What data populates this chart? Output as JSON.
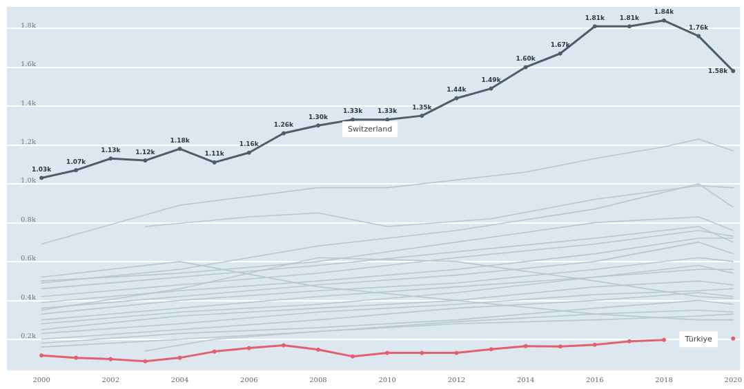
{
  "chart_data": {
    "type": "line",
    "x": [
      2000,
      2001,
      2002,
      2003,
      2004,
      2005,
      2006,
      2007,
      2008,
      2009,
      2010,
      2011,
      2012,
      2013,
      2014,
      2015,
      2016,
      2017,
      2018,
      2019,
      2020
    ],
    "xlim": [
      1999,
      2020.2
    ],
    "xticks": [
      2000,
      2002,
      2004,
      2006,
      2008,
      2010,
      2012,
      2014,
      2016,
      2018,
      2020
    ],
    "ylim": [
      40,
      1910
    ],
    "yticks": [
      {
        "value": 200,
        "label": "0.2k"
      },
      {
        "value": 400,
        "label": "0.4k"
      },
      {
        "value": 600,
        "label": "0.6k"
      },
      {
        "value": 800,
        "label": "0.8k"
      },
      {
        "value": 1000,
        "label": "1.0k"
      },
      {
        "value": 1200,
        "label": "1.2k"
      },
      {
        "value": 1400,
        "label": "1.4k"
      },
      {
        "value": 1600,
        "label": "1.6k"
      },
      {
        "value": 1800,
        "label": "1.8k"
      }
    ],
    "grid": "y",
    "legend": false,
    "marker": "circle",
    "line_style": "solid",
    "series": [
      {
        "marker": "none",
        "color": "#b9c7d1",
        "x": [
          2000,
          2004,
          2008,
          2010,
          2014,
          2016,
          2018,
          2019,
          2020
        ],
        "values": [
          690,
          890,
          980,
          980,
          1060,
          1130,
          1190,
          1230,
          1170
        ]
      },
      {
        "marker": "none",
        "color": "#b9c7d1",
        "x": [
          2003,
          2006,
          2008,
          2010,
          2013,
          2016,
          2019,
          2020
        ],
        "values": [
          780,
          830,
          850,
          780,
          820,
          920,
          990,
          980
        ]
      },
      {
        "marker": "none",
        "color": "#b9c7d1",
        "x": [
          2000,
          2004,
          2008,
          2012,
          2016,
          2019,
          2020
        ],
        "values": [
          490,
          560,
          680,
          760,
          870,
          1000,
          880
        ]
      },
      {
        "marker": "none",
        "color": "#b9c7d1",
        "x": [
          2000,
          2004,
          2008,
          2012,
          2016,
          2019,
          2020
        ],
        "values": [
          500,
          540,
          600,
          700,
          800,
          830,
          760
        ]
      },
      {
        "marker": "none",
        "color": "#b9c7d1",
        "x": [
          2000,
          2004,
          2008,
          2012,
          2016,
          2019,
          2020
        ],
        "values": [
          460,
          520,
          580,
          650,
          720,
          780,
          700
        ]
      },
      {
        "marker": "none",
        "color": "#b9c7d1",
        "x": [
          2000,
          2004,
          2008,
          2012,
          2016,
          2019,
          2020
        ],
        "values": [
          420,
          480,
          540,
          620,
          690,
          760,
          730
        ]
      },
      {
        "marker": "none",
        "color": "#b9c7d1",
        "x": [
          2000,
          2004,
          2008,
          2012,
          2016,
          2019,
          2020
        ],
        "values": [
          390,
          450,
          500,
          560,
          640,
          720,
          720
        ]
      },
      {
        "marker": "none",
        "color": "#b9c7d1",
        "x": [
          2000,
          2004,
          2008,
          2012,
          2016,
          2019,
          2020
        ],
        "values": [
          360,
          420,
          480,
          530,
          600,
          700,
          640
        ]
      },
      {
        "marker": "none",
        "color": "#b9c7d1",
        "x": [
          2000,
          2004,
          2008,
          2012,
          2016,
          2019,
          2020
        ],
        "values": [
          330,
          400,
          450,
          490,
          560,
          620,
          600
        ]
      },
      {
        "marker": "none",
        "color": "#b9c7d1",
        "x": [
          2000,
          2004,
          2008,
          2012,
          2016,
          2019,
          2020
        ],
        "values": [
          300,
          360,
          420,
          470,
          520,
          560,
          560
        ]
      },
      {
        "marker": "none",
        "color": "#b9c7d1",
        "x": [
          2000,
          2004,
          2008,
          2012,
          2016,
          2019,
          2020
        ],
        "values": [
          280,
          340,
          380,
          440,
          520,
          580,
          540
        ]
      },
      {
        "marker": "none",
        "color": "#b9c7d1",
        "x": [
          2000,
          2004,
          2008,
          2012,
          2016,
          2019,
          2020
        ],
        "values": [
          250,
          320,
          360,
          400,
          470,
          500,
          480
        ]
      },
      {
        "marker": "none",
        "color": "#b9c7d1",
        "x": [
          2000,
          2004,
          2008,
          2012,
          2016,
          2019,
          2020
        ],
        "values": [
          230,
          280,
          340,
          380,
          430,
          450,
          460
        ]
      },
      {
        "marker": "none",
        "color": "#b9c7d1",
        "x": [
          2000,
          2004,
          2008,
          2012,
          2016,
          2019,
          2020
        ],
        "values": [
          200,
          250,
          300,
          360,
          400,
          440,
          420
        ]
      },
      {
        "marker": "none",
        "color": "#b9c7d1",
        "x": [
          2000,
          2004,
          2008,
          2012,
          2016,
          2019,
          2020
        ],
        "values": [
          180,
          230,
          260,
          300,
          360,
          400,
          380
        ]
      },
      {
        "marker": "none",
        "color": "#b9c7d1",
        "x": [
          2000,
          2004,
          2008,
          2012,
          2016,
          2019,
          2020
        ],
        "values": [
          160,
          200,
          240,
          290,
          330,
          350,
          340
        ]
      },
      {
        "marker": "none",
        "color": "#b9c7d1",
        "x": [
          2003,
          2005,
          2008,
          2012,
          2016,
          2019,
          2020
        ],
        "values": [
          140,
          200,
          240,
          280,
          300,
          320,
          330
        ]
      },
      {
        "marker": "none",
        "color": "#b9c7d1",
        "x": [
          2000,
          2004,
          2008,
          2012,
          2016,
          2019,
          2020
        ],
        "values": [
          520,
          600,
          470,
          400,
          330,
          300,
          300
        ]
      },
      {
        "marker": "none",
        "color": "#b9c7d1",
        "x": [
          2000,
          2004,
          2008,
          2012,
          2016,
          2019,
          2020
        ],
        "values": [
          350,
          460,
          620,
          600,
          500,
          420,
          410
        ]
      },
      {
        "name": "Switzerland",
        "color": "#4e5d69",
        "values": [
          1030,
          1070,
          1130,
          1120,
          1180,
          1110,
          1160,
          1260,
          1300,
          1330,
          1330,
          1350,
          1440,
          1490,
          1600,
          1670,
          1810,
          1810,
          1840,
          1760,
          1580
        ],
        "value_labels": [
          "1.03k",
          "1.07k",
          "1.13k",
          "1.12k",
          "1.18k",
          "1.11k",
          "1.16k",
          "1.26k",
          "1.30k",
          "1.33k",
          "1.33k",
          "1.35k",
          "1.44k",
          "1.49k",
          "1.60k",
          "1.67k",
          "1.81k",
          "1.81k",
          "1.84k",
          "1.76k",
          "1.58k"
        ]
      },
      {
        "name": "Türkiye",
        "color": "#e45f6d",
        "values": [
          117,
          105,
          98,
          87,
          105,
          137,
          155,
          169,
          147,
          112,
          130,
          130,
          130,
          149,
          165,
          163,
          172,
          190,
          197,
          null,
          204
        ]
      }
    ]
  }
}
